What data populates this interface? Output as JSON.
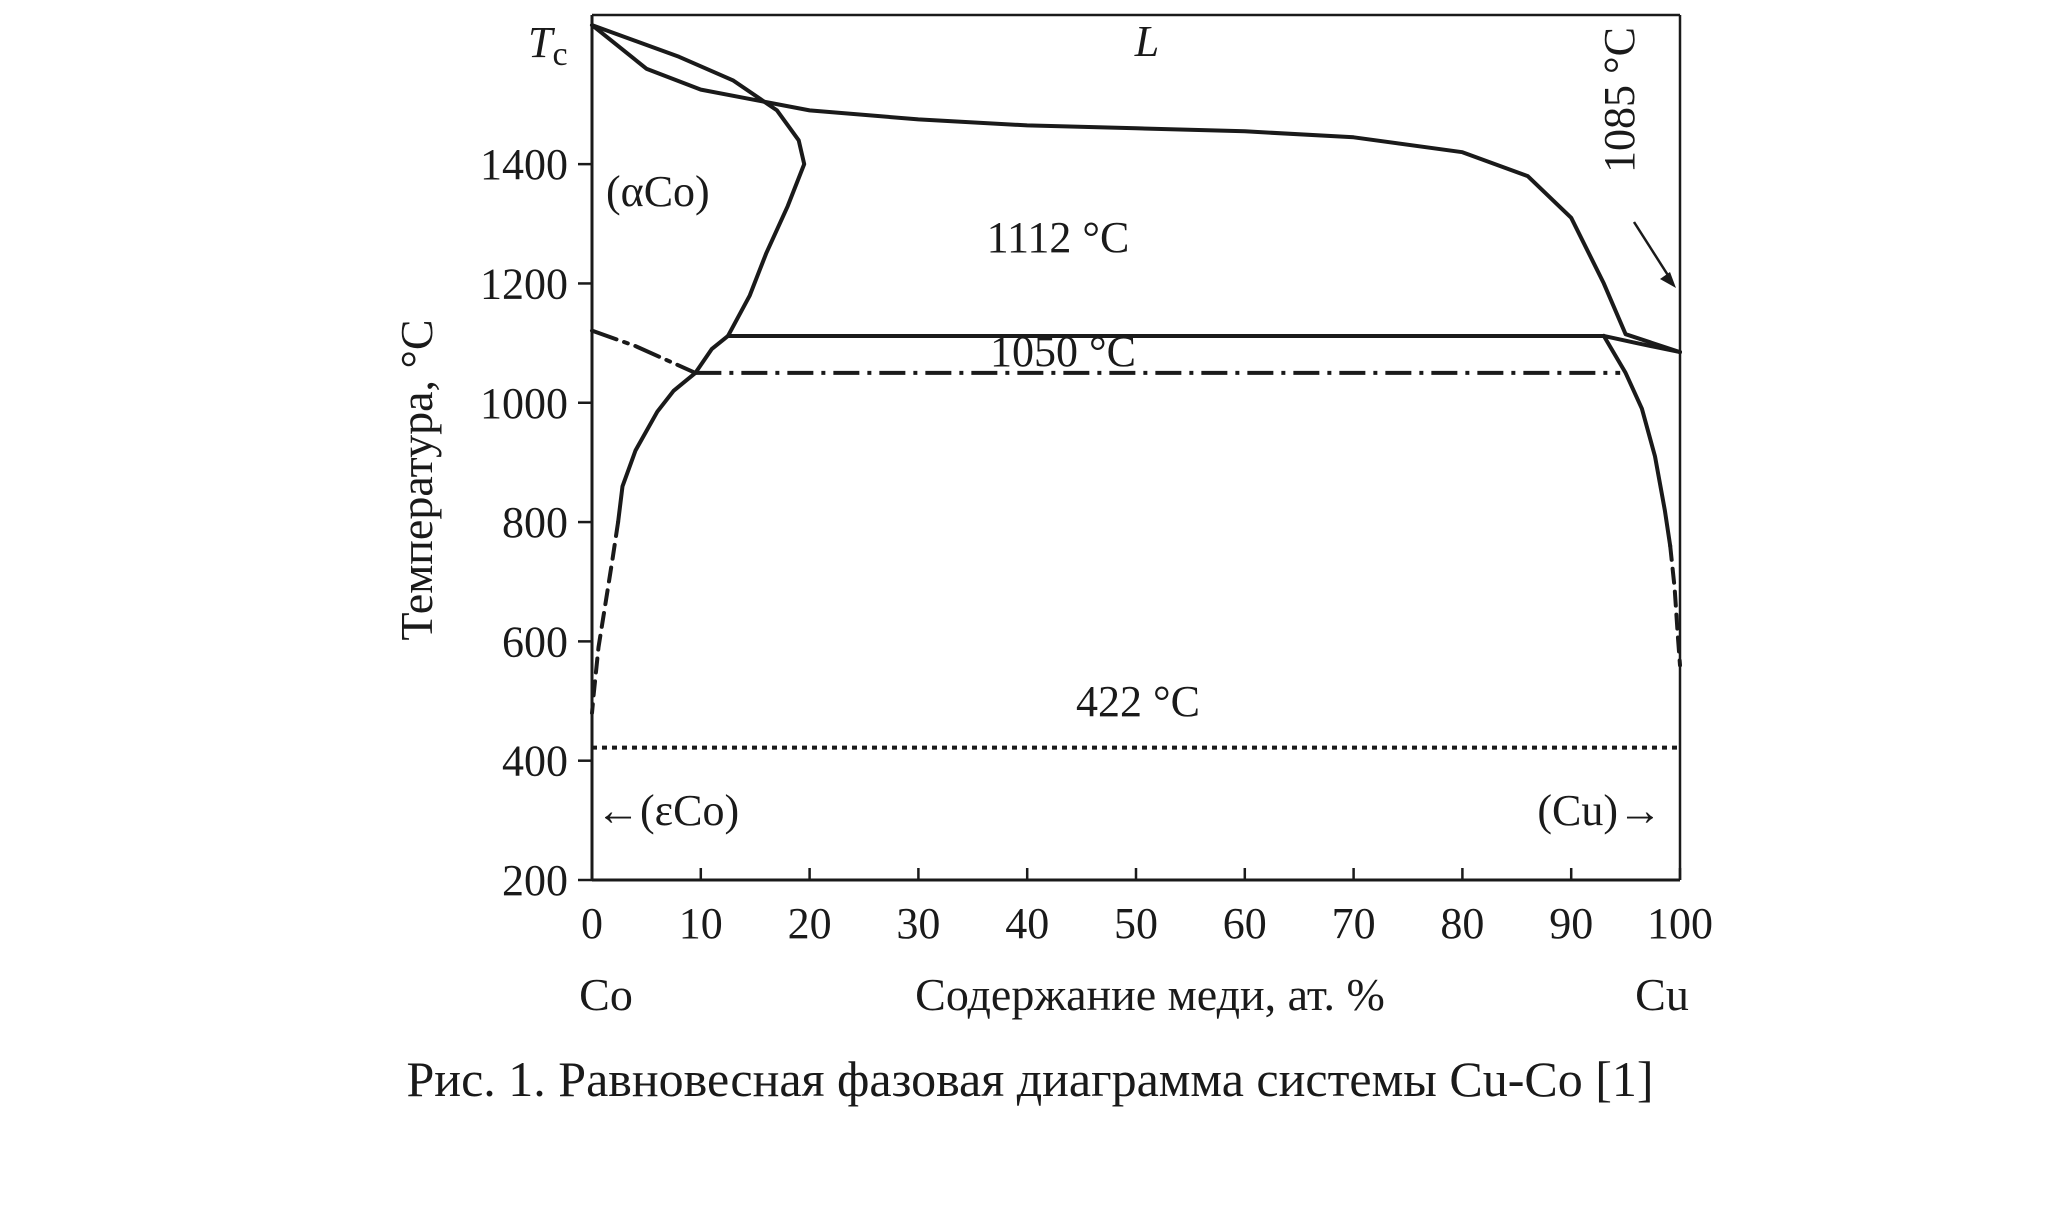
{
  "figure": {
    "caption": "Рис. 1. Равновесная фазовая диаграмма системы Cu-Co [1]",
    "ink_color": "#1a1a1a"
  },
  "chart_data": {
    "type": "phase-diagram",
    "xlabel": "Содержание меди, ат. %",
    "ylabel": "Температура, °C",
    "xlim": [
      0,
      100
    ],
    "ylim": [
      200,
      1650
    ],
    "x_ticks": [
      0,
      10,
      20,
      30,
      40,
      50,
      60,
      70,
      80,
      90,
      100
    ],
    "y_ticks": [
      200,
      400,
      600,
      800,
      1000,
      1200,
      1400
    ],
    "end_labels": {
      "left": "Co",
      "right": "Cu"
    },
    "tc_label": {
      "text": "T",
      "sub": "c"
    },
    "region_labels": {
      "liquid": "L",
      "alpha_co": "(αCo)",
      "epsilon_co": "←(εCo)",
      "cu": "(Cu)→"
    },
    "isotherms": [
      {
        "label": "1112 °C",
        "t": 1112,
        "x_from": 12.5,
        "x_to": 93,
        "style": "solid"
      },
      {
        "label": "1050 °C",
        "t": 1050,
        "x_from": 9.5,
        "x_to": 94.5,
        "style": "dash-dot"
      },
      {
        "label": "422 °C",
        "t": 422,
        "x_from": 0,
        "x_to": 100,
        "style": "dotted"
      }
    ],
    "cu_melting_label": "1085 °C",
    "lines": [
      {
        "name": "liquidus",
        "style": "solid",
        "points": [
          [
            0,
            1633
          ],
          [
            5,
            1560
          ],
          [
            10,
            1525
          ],
          [
            20,
            1490
          ],
          [
            30,
            1475
          ],
          [
            40,
            1465
          ],
          [
            50,
            1460
          ],
          [
            60,
            1455
          ],
          [
            70,
            1445
          ],
          [
            80,
            1420
          ],
          [
            86,
            1380
          ],
          [
            90,
            1310
          ],
          [
            93,
            1200
          ],
          [
            95,
            1115
          ],
          [
            100,
            1085
          ]
        ]
      },
      {
        "name": "alpha-co-solidus",
        "style": "solid",
        "points": [
          [
            0,
            1633
          ],
          [
            8,
            1580
          ],
          [
            13,
            1540
          ],
          [
            17,
            1490
          ],
          [
            19,
            1440
          ],
          [
            19.5,
            1400
          ],
          [
            18,
            1330
          ],
          [
            16,
            1250
          ],
          [
            14.5,
            1180
          ],
          [
            12.5,
            1112
          ]
        ]
      },
      {
        "name": "alpha-co-solvus",
        "style": "solid",
        "points": [
          [
            12.5,
            1112
          ],
          [
            11,
            1090
          ],
          [
            9.5,
            1050
          ],
          [
            7.5,
            1020
          ],
          [
            6,
            985
          ],
          [
            4,
            920
          ],
          [
            2.8,
            860
          ],
          [
            2.4,
            800
          ]
        ]
      },
      {
        "name": "alpha-co-solvus-low",
        "style": "dashed",
        "points": [
          [
            2.4,
            800
          ],
          [
            1.9,
            740
          ],
          [
            1.3,
            670
          ],
          [
            0.6,
            590
          ],
          [
            0.15,
            510
          ],
          [
            0,
            480
          ]
        ]
      },
      {
        "name": "magnetic-transition",
        "style": "dash-dot",
        "points": [
          [
            0,
            1121
          ],
          [
            4,
            1095
          ],
          [
            9.5,
            1050
          ]
        ]
      },
      {
        "name": "cu-solidus",
        "style": "solid",
        "points": [
          [
            93,
            1112
          ],
          [
            96,
            1100
          ],
          [
            100,
            1085
          ]
        ]
      },
      {
        "name": "cu-solvus",
        "style": "solid",
        "points": [
          [
            93,
            1112
          ],
          [
            95,
            1050
          ],
          [
            96.5,
            990
          ],
          [
            97.7,
            910
          ],
          [
            98.6,
            820
          ],
          [
            99.1,
            760
          ]
        ]
      },
      {
        "name": "cu-solvus-low",
        "style": "dashed",
        "points": [
          [
            99.1,
            760
          ],
          [
            99.5,
            690
          ],
          [
            99.8,
            610
          ],
          [
            100,
            560
          ]
        ]
      }
    ]
  }
}
